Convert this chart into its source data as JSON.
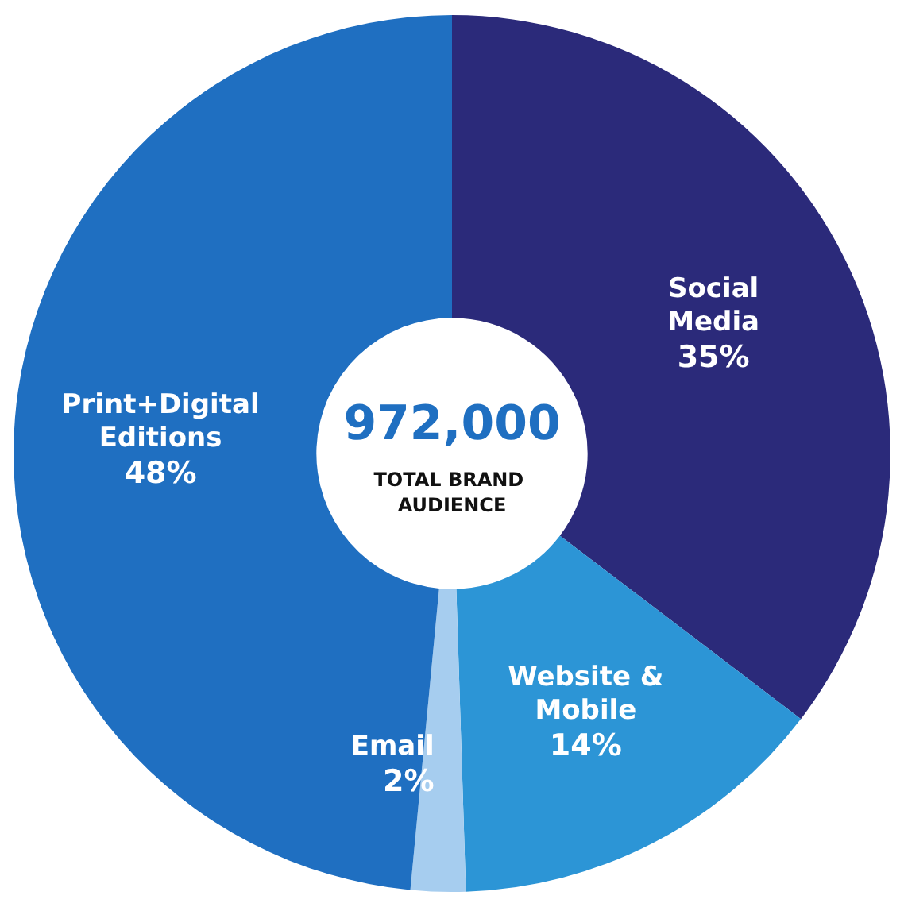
{
  "chart_data": {
    "type": "donut",
    "categories": [
      "Social Media",
      "Website & Mobile",
      "Email",
      "Print+Digital Editions"
    ],
    "values": [
      35,
      14,
      2,
      48
    ],
    "colors": [
      "#2b2a7a",
      "#2c95d6",
      "#a6cdef",
      "#1f6fc1"
    ],
    "value_labels": [
      "35%",
      "14%",
      "2%",
      "48%"
    ],
    "annotations": [
      "972,000",
      "TOTAL BRAND AUDIENCE"
    ],
    "legend": false
  }
}
